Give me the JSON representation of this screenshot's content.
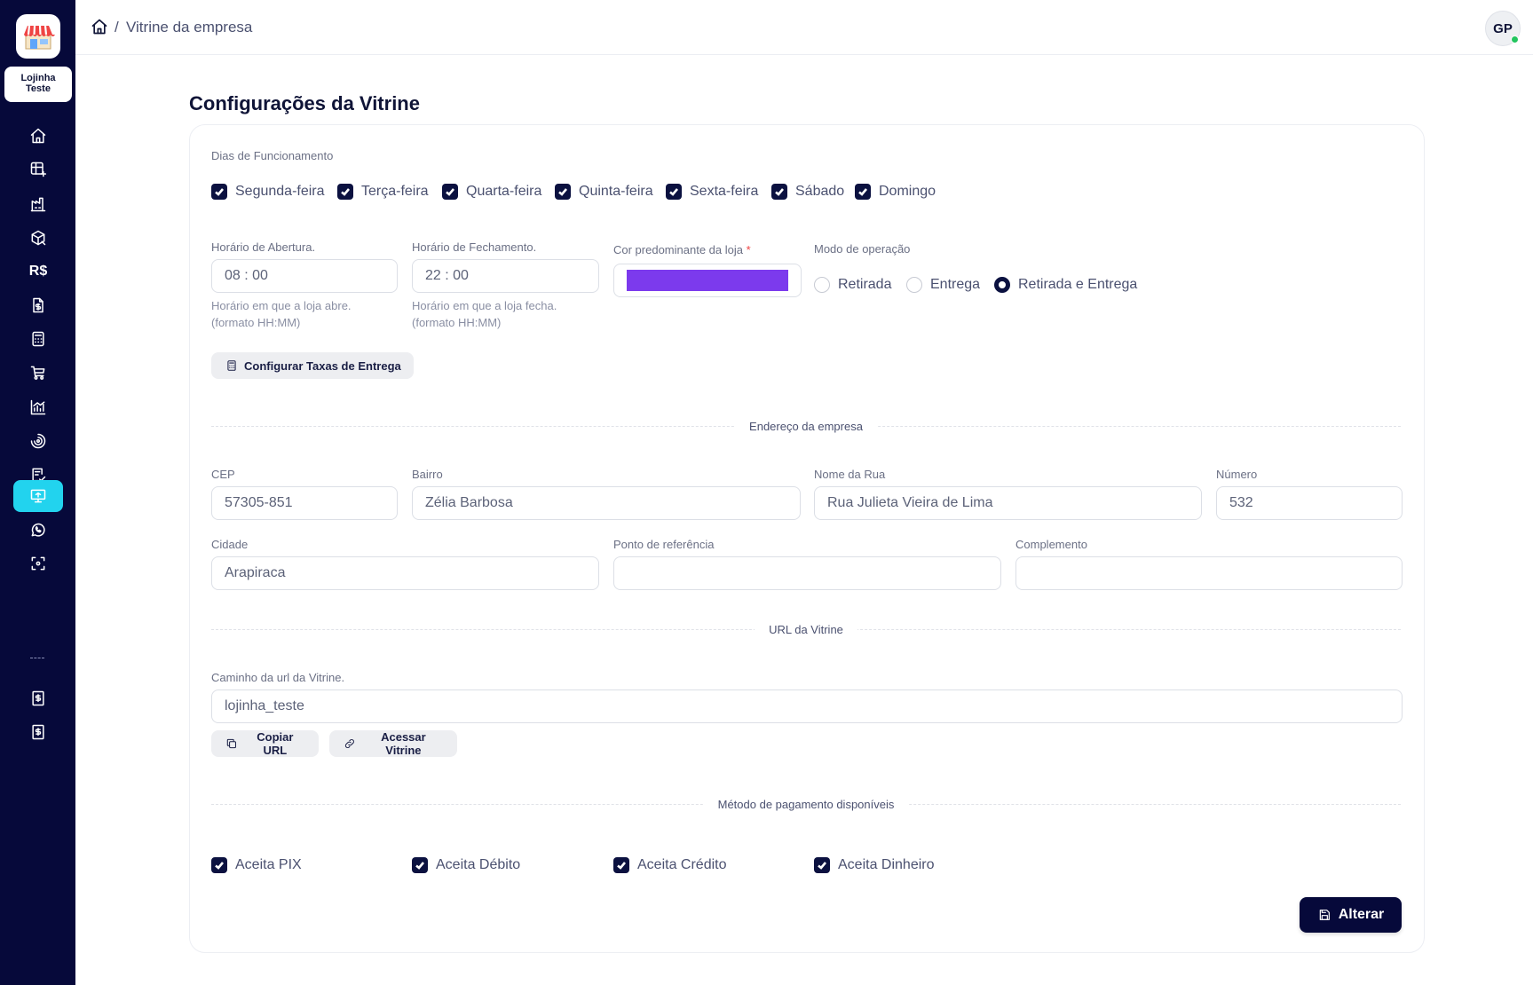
{
  "store": {
    "name_line1": "Lojinha",
    "name_line2": "Teste"
  },
  "nav": [
    {
      "icon": "home-icon"
    },
    {
      "icon": "table-plus-icon"
    },
    {
      "icon": "factory-icon"
    },
    {
      "icon": "package-icon"
    },
    {
      "icon": "currency-icon",
      "label": "R$"
    },
    {
      "icon": "dollar-file-icon"
    },
    {
      "icon": "calculator-icon"
    },
    {
      "icon": "cart-icon"
    },
    {
      "icon": "chart-icon"
    },
    {
      "icon": "target-icon"
    },
    {
      "icon": "receipt-icon"
    },
    {
      "icon": "monitor-icon",
      "active": true
    },
    {
      "icon": "whatsapp-icon"
    },
    {
      "icon": "scan-icon"
    },
    {
      "icon": "dollar-doc-icon"
    },
    {
      "icon": "dollar-doc-icon"
    }
  ],
  "breadcrumb": {
    "sep": "/",
    "current": "Vitrine da empresa"
  },
  "user": {
    "initials": "GP",
    "online_color": "#22c55e"
  },
  "page_title": "Configurações da Vitrine",
  "days": {
    "label": "Dias de Funcionamento",
    "items": [
      {
        "label": "Segunda-feira",
        "checked": true
      },
      {
        "label": "Terça-feira",
        "checked": true
      },
      {
        "label": "Quarta-feira",
        "checked": true
      },
      {
        "label": "Quinta-feira",
        "checked": true
      },
      {
        "label": "Sexta-feira",
        "checked": true
      },
      {
        "label": "Sábado",
        "checked": true
      },
      {
        "label": "Domingo",
        "checked": true
      }
    ]
  },
  "hours": {
    "open_label": "Horário de Abertura.",
    "open_value": "08 : 00",
    "open_help_1": "Horário em que a loja abre.",
    "open_help_2": "(formato HH:MM)",
    "close_label": "Horário de Fechamento.",
    "close_value": "22 : 00",
    "close_help_1": "Horário em que a loja fecha.",
    "close_help_2": "(formato HH:MM)"
  },
  "color": {
    "label": "Cor predominante da loja",
    "required_mark": "*",
    "value": "#7c3aed"
  },
  "mode": {
    "label": "Modo de operação",
    "options": [
      "Retirada",
      "Entrega",
      "Retirada e Entrega"
    ],
    "selected": "Retirada e Entrega"
  },
  "delivery_fees_button": "Configurar Taxas de Entrega",
  "address": {
    "section": "Endereço da empresa",
    "cep_label": "CEP",
    "cep": "57305-851",
    "bairro_label": "Bairro",
    "bairro": "Zélia Barbosa",
    "rua_label": "Nome da Rua",
    "rua": "Rua Julieta Vieira de Lima",
    "numero_label": "Número",
    "numero": "532",
    "cidade_label": "Cidade",
    "cidade": "Arapiraca",
    "referencia_label": "Ponto de referência",
    "referencia": "",
    "complemento_label": "Complemento",
    "complemento": ""
  },
  "url": {
    "section": "URL da Vitrine",
    "label": "Caminho da url da Vitrine.",
    "value": "lojinha_teste",
    "copy_button": "Copiar URL",
    "access_button": "Acessar Vitrine"
  },
  "payment": {
    "section": "Método de pagamento disponíveis",
    "items": [
      {
        "label": "Aceita PIX",
        "checked": true
      },
      {
        "label": "Aceita Débito",
        "checked": true
      },
      {
        "label": "Aceita Crédito",
        "checked": true
      },
      {
        "label": "Aceita Dinheiro",
        "checked": true
      }
    ]
  },
  "save_button": "Alterar",
  "colors": {
    "sidebar": "#06093a",
    "active_nav": "#22d3ee",
    "accent": "#0b1140"
  }
}
